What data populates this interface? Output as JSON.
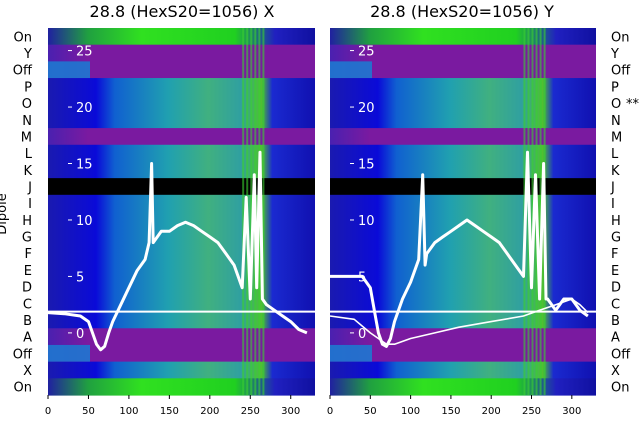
{
  "figure": {
    "dipole_labels": [
      "On",
      "Y",
      "Off",
      "P",
      "O",
      "N",
      "M",
      "L",
      "K",
      "J",
      "I",
      "H",
      "G",
      "F",
      "E",
      "D",
      "C",
      "B",
      "A",
      "Off",
      "X",
      "On"
    ],
    "right_marker": "**",
    "ylabel": "Dipole",
    "colors": {
      "background": "#ffffff",
      "trace": "#ffffff",
      "band_black": "#000000"
    }
  },
  "chart_data": [
    {
      "type": "heatmap",
      "title": "28.8 (HexS20=1056) X",
      "xlabel": "",
      "ylabel": "Dipole",
      "xlim": [
        0,
        330
      ],
      "ylim": [
        -5.5,
        27
      ],
      "xticks": [
        0,
        50,
        100,
        150,
        200,
        250,
        300
      ],
      "yticks": [
        0,
        5,
        10,
        15,
        20,
        25
      ],
      "ytick_labels": [
        "0",
        "5",
        "10",
        "15",
        "20",
        "25"
      ],
      "series": [
        {
          "points": [
            [
              0,
              1.8
            ],
            [
              20,
              1.7
            ],
            [
              40,
              1.5
            ],
            [
              50,
              1
            ],
            [
              55,
              0
            ],
            [
              60,
              -1
            ],
            [
              65,
              -1.5
            ],
            [
              70,
              -1.2
            ],
            [
              75,
              0
            ],
            [
              80,
              1
            ],
            [
              90,
              2.5
            ],
            [
              100,
              4
            ],
            [
              110,
              5.5
            ],
            [
              120,
              6.5
            ],
            [
              125,
              8
            ],
            [
              128,
              15
            ],
            [
              130,
              8
            ],
            [
              140,
              9
            ],
            [
              150,
              9
            ],
            [
              160,
              9.5
            ],
            [
              170,
              9.8
            ],
            [
              180,
              9.5
            ],
            [
              190,
              9
            ],
            [
              200,
              8.5
            ],
            [
              210,
              8
            ],
            [
              220,
              7
            ],
            [
              230,
              6
            ],
            [
              240,
              4
            ],
            [
              245,
              12
            ],
            [
              250,
              3
            ],
            [
              255,
              14
            ],
            [
              258,
              4
            ],
            [
              262,
              16
            ],
            [
              265,
              3
            ],
            [
              270,
              2.5
            ],
            [
              280,
              2
            ],
            [
              290,
              1.5
            ],
            [
              300,
              1
            ],
            [
              310,
              0.3
            ],
            [
              320,
              0
            ]
          ]
        }
      ]
    },
    {
      "type": "heatmap",
      "title": "28.8 (HexS20=1056) Y",
      "xlabel": "",
      "ylabel": "",
      "xlim": [
        0,
        330
      ],
      "ylim": [
        -5.5,
        27
      ],
      "xticks": [
        0,
        50,
        100,
        150,
        200,
        250,
        300
      ],
      "yticks": [
        0,
        5,
        10,
        15,
        20,
        25
      ],
      "ytick_labels": [
        "0",
        "5",
        "10",
        "15",
        "20",
        "25"
      ],
      "series": [
        {
          "points": [
            [
              0,
              5
            ],
            [
              20,
              5
            ],
            [
              40,
              5
            ],
            [
              50,
              4
            ],
            [
              55,
              2
            ],
            [
              60,
              0
            ],
            [
              65,
              -1
            ],
            [
              70,
              -1.2
            ],
            [
              75,
              -0.5
            ],
            [
              80,
              1
            ],
            [
              90,
              3
            ],
            [
              100,
              4.5
            ],
            [
              110,
              6.5
            ],
            [
              115,
              14
            ],
            [
              118,
              6
            ],
            [
              120,
              7
            ],
            [
              130,
              8
            ],
            [
              140,
              8.5
            ],
            [
              150,
              9
            ],
            [
              160,
              9.5
            ],
            [
              170,
              10
            ],
            [
              180,
              9.5
            ],
            [
              190,
              9
            ],
            [
              200,
              8.5
            ],
            [
              210,
              8
            ],
            [
              220,
              7
            ],
            [
              230,
              6
            ],
            [
              240,
              5
            ],
            [
              245,
              16
            ],
            [
              250,
              4
            ],
            [
              255,
              14
            ],
            [
              260,
              3
            ],
            [
              265,
              15
            ],
            [
              268,
              3
            ],
            [
              270,
              3
            ],
            [
              275,
              2.5
            ],
            [
              280,
              2
            ],
            [
              290,
              3
            ],
            [
              300,
              3
            ],
            [
              310,
              2
            ],
            [
              320,
              1.5
            ]
          ]
        },
        {
          "points": [
            [
              0,
              1.5
            ],
            [
              30,
              1.2
            ],
            [
              50,
              0
            ],
            [
              60,
              -0.5
            ],
            [
              70,
              -1
            ],
            [
              80,
              -1
            ],
            [
              100,
              -0.5
            ],
            [
              130,
              0
            ],
            [
              160,
              0.5
            ],
            [
              200,
              1
            ],
            [
              240,
              1.5
            ],
            [
              260,
              2
            ],
            [
              280,
              2.5
            ],
            [
              300,
              3
            ],
            [
              310,
              2.5
            ],
            [
              320,
              1.8
            ]
          ]
        }
      ]
    }
  ]
}
